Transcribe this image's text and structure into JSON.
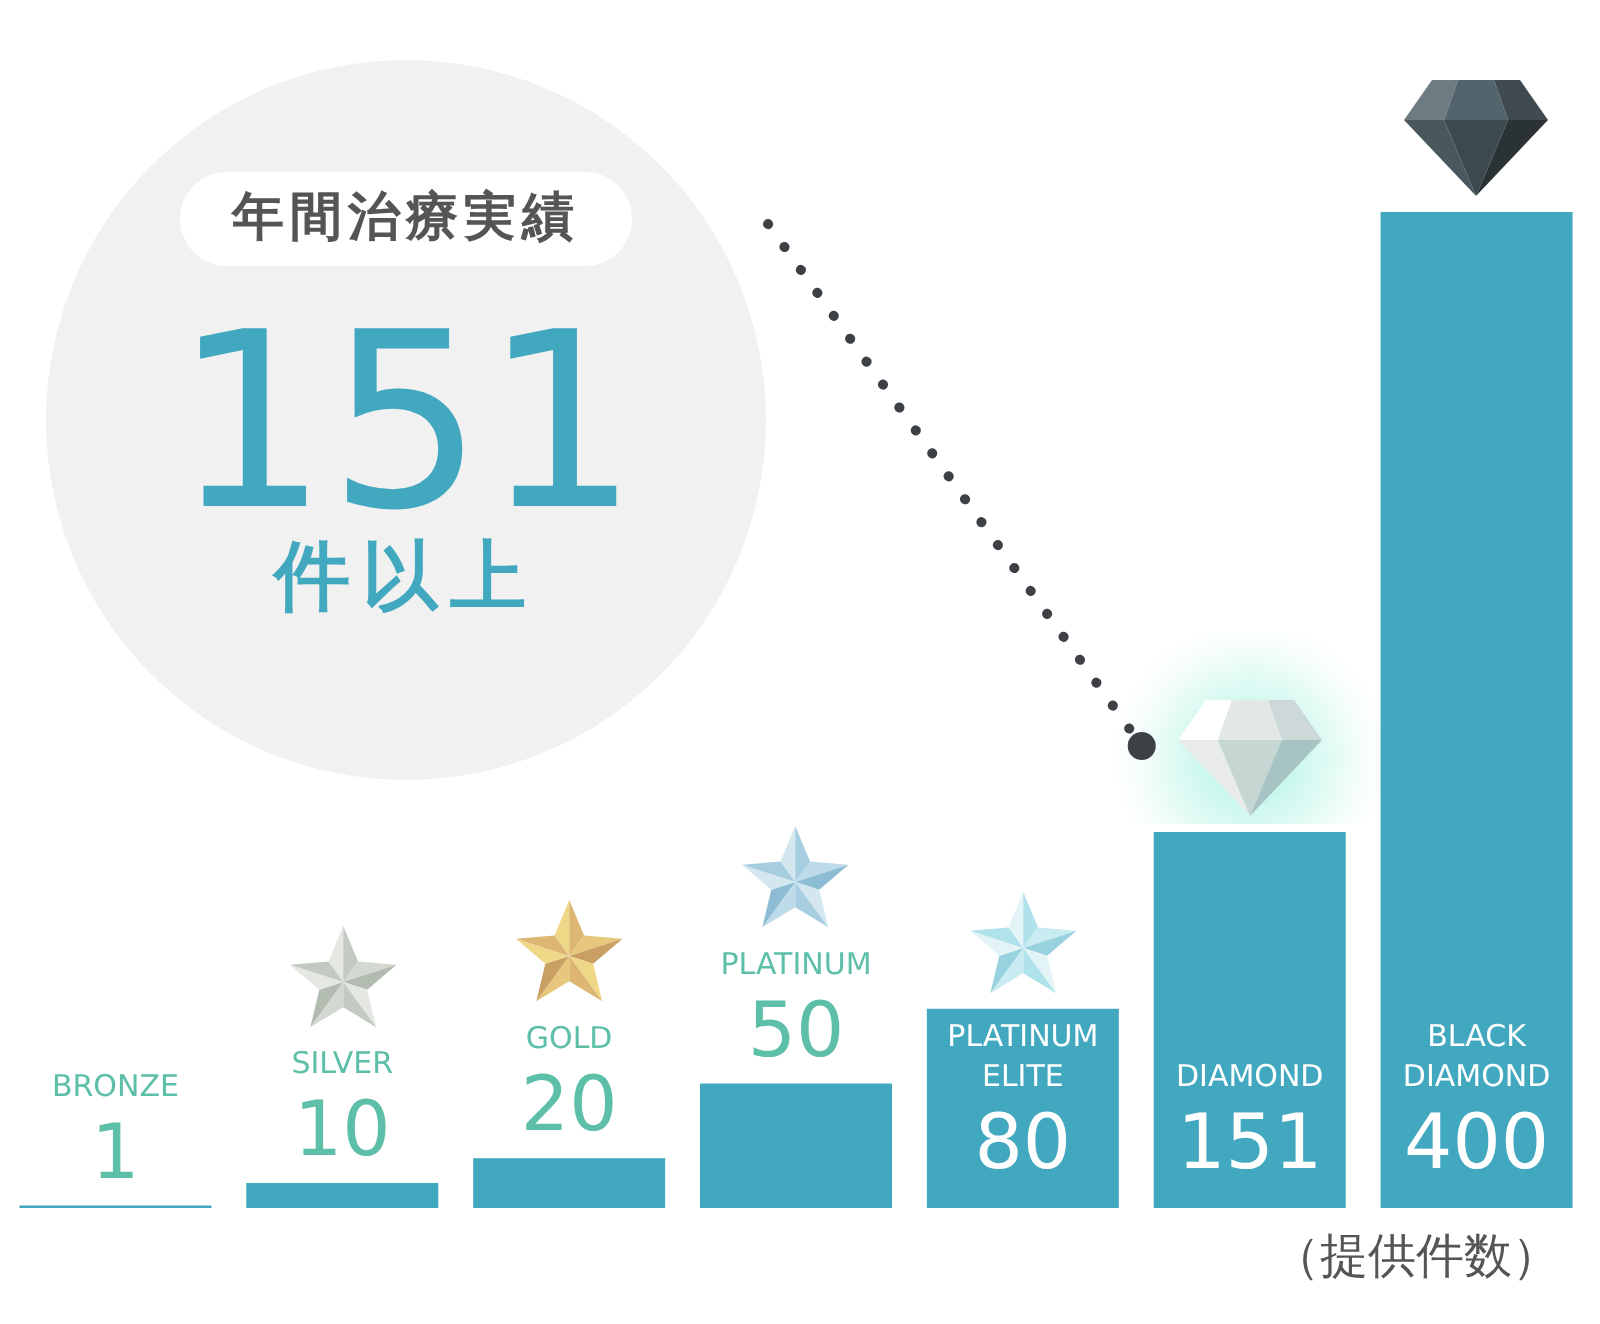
{
  "chart_data": {
    "type": "bar",
    "categories": [
      "BRONZE",
      "SILVER",
      "GOLD",
      "PLATINUM",
      "PLATINUM ELITE",
      "DIAMOND",
      "BLACK DIAMOND"
    ],
    "values": [
      1,
      10,
      20,
      50,
      80,
      151,
      400
    ],
    "color": "#41a8bf",
    "data_labels": true,
    "tick_labels": false,
    "annotations": [
      "年間治療実績",
      "151",
      "件以上",
      "（提供件数）"
    ]
  }
}
